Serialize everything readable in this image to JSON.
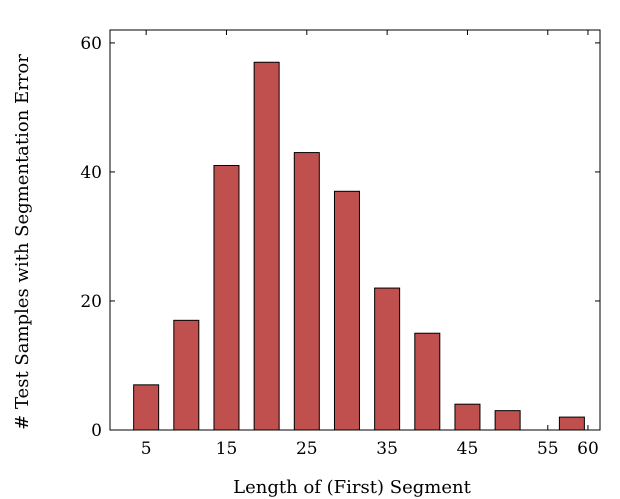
{
  "chart_data": {
    "type": "bar",
    "x": [
      5,
      10,
      15,
      20,
      25,
      30,
      35,
      40,
      45,
      50,
      55,
      58
    ],
    "values": [
      7,
      17,
      41,
      57,
      43,
      37,
      22,
      15,
      4,
      3,
      0,
      2
    ],
    "xlabel": "Length of (First) Segment",
    "ylabel": "# Test Samples with Segmentation Error",
    "xticks": [
      5,
      15,
      25,
      35,
      45,
      55,
      60
    ],
    "yticks": [
      0,
      20,
      40,
      60
    ],
    "xlim": [
      0.5,
      61.5
    ],
    "ylim": [
      0,
      62
    ],
    "grid": false,
    "colors": {
      "bar_fill": "#c0504d",
      "bar_stroke": "#000000"
    }
  }
}
